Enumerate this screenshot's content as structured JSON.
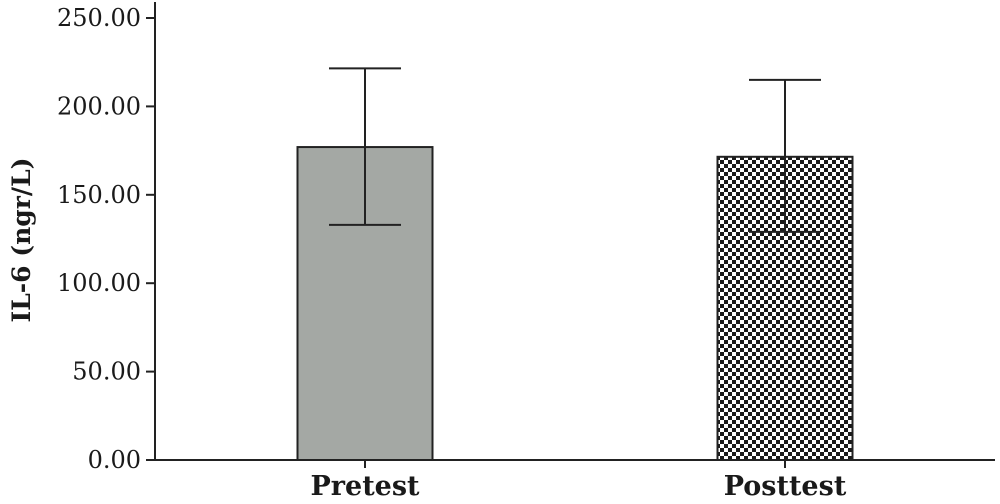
{
  "chart_data": {
    "type": "bar",
    "title": "",
    "xlabel": "",
    "ylabel": "IL-6 (ngr/L)",
    "categories": [
      "Pretest",
      "Posttest"
    ],
    "values": [
      177,
      171.5
    ],
    "error_bars": [
      {
        "low": 133,
        "high": 221.5
      },
      {
        "low": 129,
        "high": 215
      }
    ],
    "ylim": [
      0,
      250
    ],
    "yticks": [
      "0.00",
      "50.00",
      "100.00",
      "150.00",
      "200.00",
      "250.00"
    ],
    "ytick_values": [
      0,
      50,
      100,
      150,
      200,
      250
    ],
    "bar_fills": [
      "solid-gray",
      "checkerboard"
    ],
    "colors": {
      "bar_gray": "#a4a8a4",
      "checker_dark": "#1a1a1a",
      "checker_light": "#ffffff",
      "axis": "#222222"
    },
    "grid": false,
    "legend": "none"
  }
}
